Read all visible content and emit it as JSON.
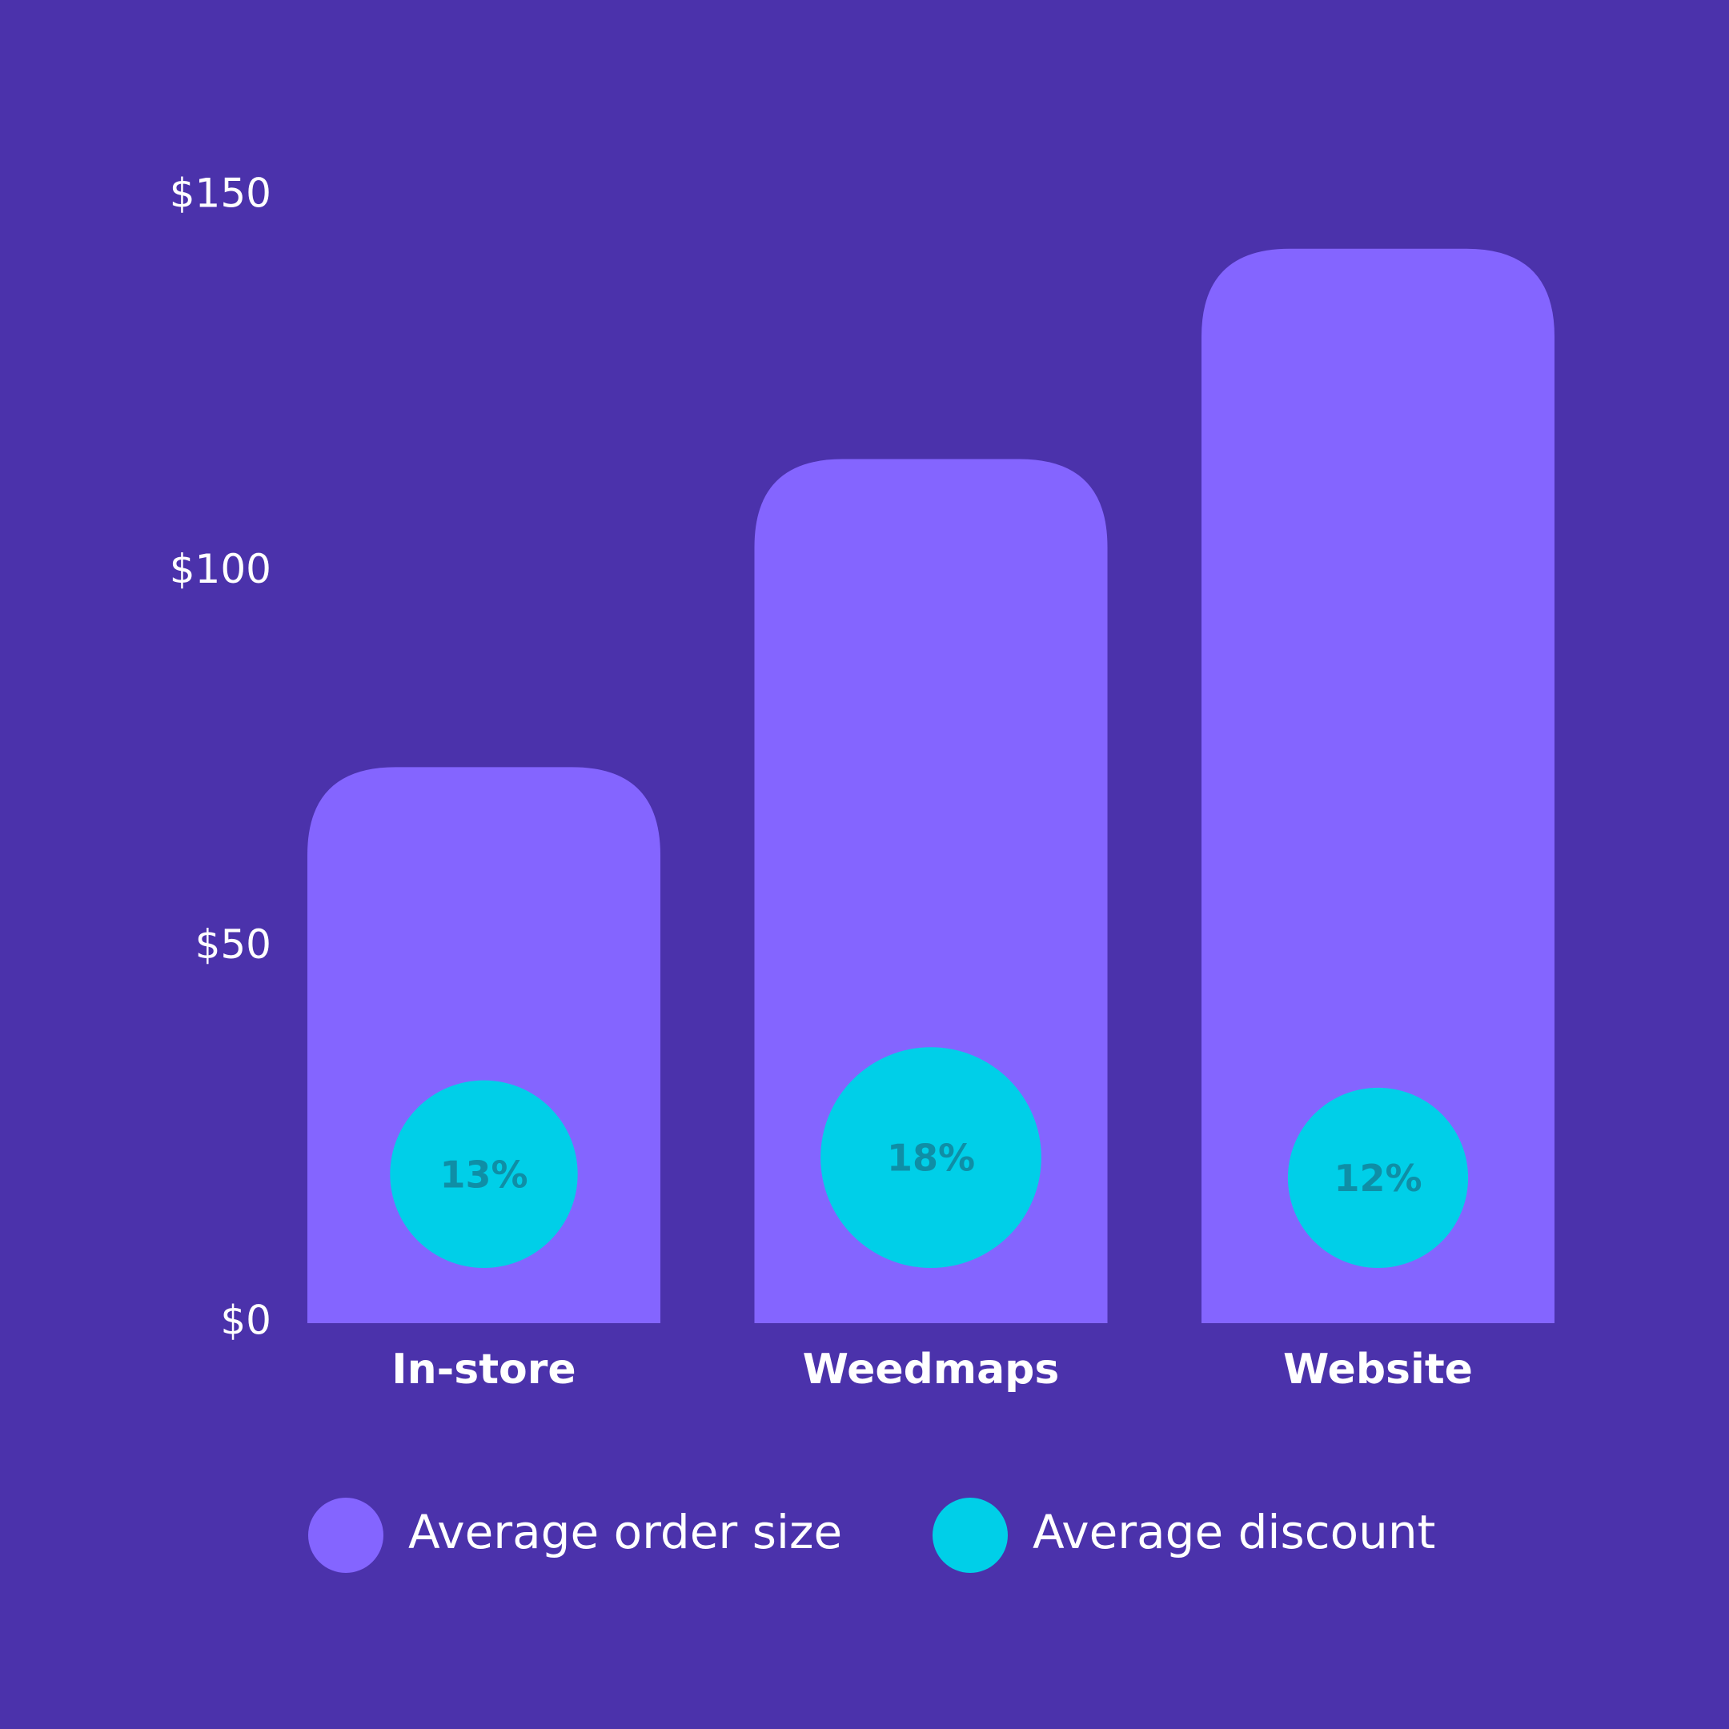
{
  "chart_data": {
    "type": "bar",
    "categories": [
      "In-store",
      "Weedmaps",
      "Website"
    ],
    "series": [
      {
        "name": "Average order size",
        "color": "#8465ff",
        "values": [
          74,
          115,
          143
        ]
      },
      {
        "name": "Average discount",
        "color": "#00cfe8",
        "values": [
          13,
          18,
          12
        ],
        "value_labels": [
          "13%",
          "18%",
          "12%"
        ]
      }
    ],
    "ylim": [
      0,
      150
    ],
    "yticks": [
      {
        "value": 0,
        "label": "$0"
      },
      {
        "value": 50,
        "label": "$50"
      },
      {
        "value": 100,
        "label": "$100"
      },
      {
        "value": 150,
        "label": "$150"
      }
    ],
    "grid": false
  }
}
